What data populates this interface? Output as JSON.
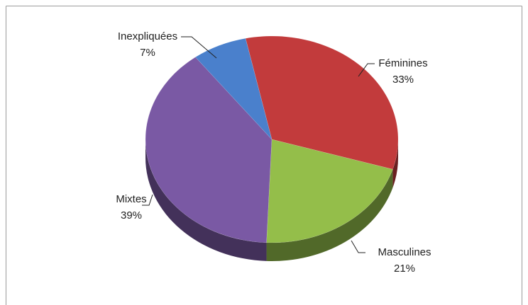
{
  "chart_data": {
    "type": "pie",
    "categories": [
      "Féminines",
      "Masculines",
      "Mixtes",
      "Inexpliquées"
    ],
    "values": [
      33,
      21,
      39,
      7
    ],
    "value_labels": [
      "33%",
      "21%",
      "39%",
      "7%"
    ],
    "colors": [
      "#c23b3c",
      "#94be4a",
      "#7a59a4",
      "#4a80cc"
    ]
  }
}
